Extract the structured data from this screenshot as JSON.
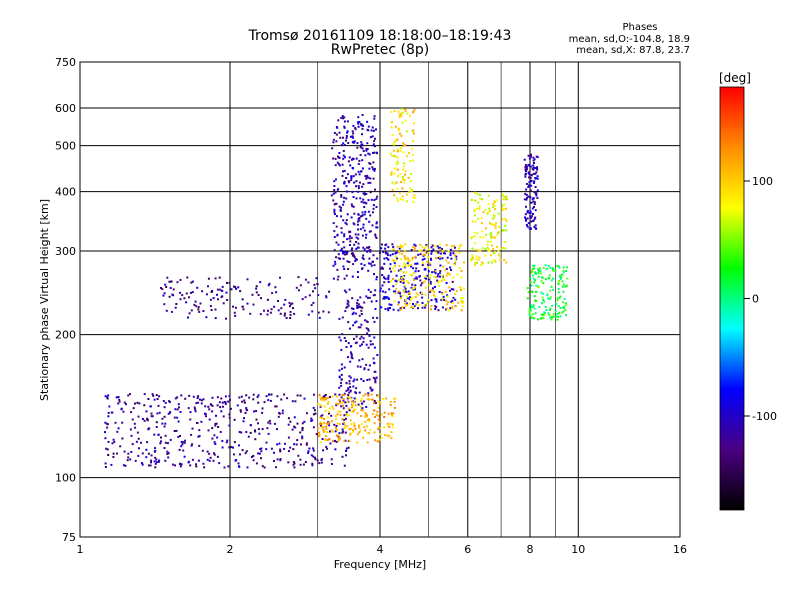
{
  "chart_data": {
    "type": "scatter",
    "title": "Tromsø 20161109 18:18:00–18:19:43",
    "subtitle": "RwPretec (8p)",
    "xlabel": "Frequency [MHz]",
    "ylabel": "Stationary phase Virtual Height [km]",
    "x_scale": "log",
    "y_scale": "log",
    "xlim": [
      1,
      16
    ],
    "ylim": [
      75,
      750
    ],
    "x_ticks": [
      1,
      2,
      4,
      6,
      8,
      10,
      16
    ],
    "x_tick_labels": [
      "1",
      "2",
      "4",
      "6",
      "8",
      "10",
      "16"
    ],
    "y_ticks": [
      75,
      100,
      200,
      300,
      400,
      500,
      600,
      750
    ],
    "y_tick_labels": [
      "75",
      "100",
      "200",
      "300",
      "400",
      "500",
      "600",
      "750"
    ],
    "x_minor_gridlines": [
      3,
      5,
      7,
      9
    ],
    "grid": true,
    "phases": {
      "heading": "Phases",
      "o_line": "mean, sd,O:-104.8, 18.9",
      "x_line": "mean, sd,X: 87.8, 23.7"
    },
    "colorbar": {
      "title": "[deg]",
      "range": [
        -180,
        180
      ],
      "ticks": [
        100,
        0,
        -100
      ],
      "tick_labels": [
        "100",
        "0",
        "-100"
      ],
      "colors": [
        "#000000",
        "#4b0082",
        "#0000ff",
        "#00ffff",
        "#00ff00",
        "#ffff00",
        "#ff8c00",
        "#ff0000"
      ]
    },
    "series_clusters": [
      {
        "note": "low trace O",
        "f_range": [
          1.12,
          3.5
        ],
        "h_range": [
          105,
          150
        ],
        "phase": -120,
        "n": 520
      },
      {
        "note": "low trace upturn O",
        "f_range": [
          3.3,
          3.95
        ],
        "h_range": [
          140,
          250
        ],
        "phase": -110,
        "n": 180
      },
      {
        "note": "low trace X",
        "f_range": [
          3.0,
          4.3
        ],
        "h_range": [
          118,
          150
        ],
        "phase": 110,
        "n": 220
      },
      {
        "note": "F trace O",
        "f_range": [
          1.45,
          3.2
        ],
        "h_range": [
          215,
          265
        ],
        "phase": -120,
        "n": 160
      },
      {
        "note": "F trace rise O",
        "f_range": [
          3.2,
          3.95
        ],
        "h_range": [
          260,
          580
        ],
        "phase": -110,
        "n": 380
      },
      {
        "note": "F2 mid O",
        "f_range": [
          4.0,
          5.7
        ],
        "h_range": [
          225,
          310
        ],
        "phase": -100,
        "n": 240
      },
      {
        "note": "F2 mid X",
        "f_range": [
          4.2,
          5.9
        ],
        "h_range": [
          225,
          310
        ],
        "phase": 95,
        "n": 200
      },
      {
        "note": "upper X cluster",
        "f_range": [
          4.2,
          4.7
        ],
        "h_range": [
          380,
          600
        ],
        "phase": 90,
        "n": 110
      },
      {
        "note": "6-7 MHz X",
        "f_range": [
          6.1,
          7.2
        ],
        "h_range": [
          280,
          400
        ],
        "phase": 80,
        "n": 140
      },
      {
        "note": "7.8-8.3 MHz O",
        "f_range": [
          7.8,
          8.3
        ],
        "h_range": [
          330,
          480
        ],
        "phase": -110,
        "n": 120
      },
      {
        "note": "8-9.5 MHz mixed",
        "f_range": [
          7.9,
          9.5
        ],
        "h_range": [
          215,
          280
        ],
        "phase": 20,
        "n": 160
      }
    ]
  }
}
